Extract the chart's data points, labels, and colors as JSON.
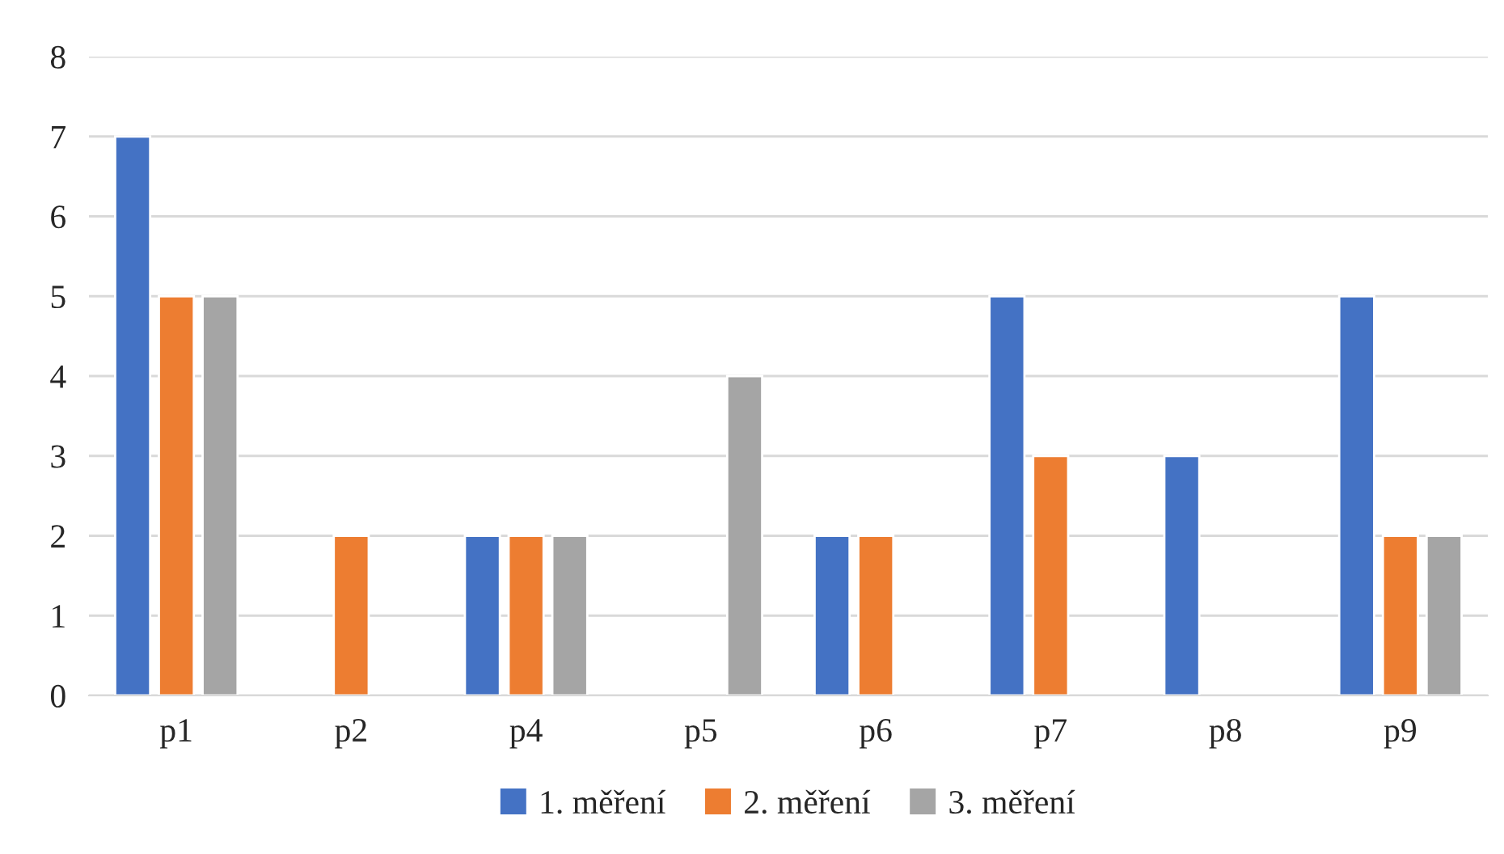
{
  "chart_data": {
    "type": "bar",
    "categories": [
      "p1",
      "p2",
      "p4",
      "p5",
      "p6",
      "p7",
      "p8",
      "p9"
    ],
    "series": [
      {
        "name": "1. měření",
        "color": "#4472c4",
        "values": [
          7,
          null,
          2,
          null,
          2,
          5,
          3,
          5
        ]
      },
      {
        "name": "2. měření",
        "color": "#ed7d31",
        "values": [
          5,
          2,
          2,
          null,
          2,
          3,
          null,
          2
        ]
      },
      {
        "name": "3. měření",
        "color": "#a5a5a5",
        "values": [
          5,
          null,
          2,
          4,
          null,
          null,
          null,
          2
        ]
      }
    ],
    "ylim": [
      0,
      8
    ],
    "yticks": [
      0,
      1,
      2,
      3,
      4,
      5,
      6,
      7,
      8
    ],
    "grid": "y",
    "legend": "bottom"
  }
}
